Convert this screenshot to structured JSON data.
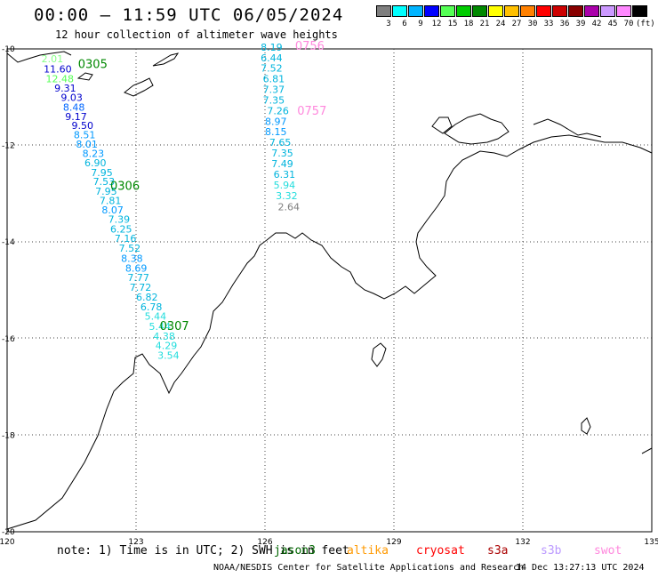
{
  "title": "00:00 – 11:59 UTC 06/05/2024",
  "subtitle": "12 hour collection of altimeter wave heights",
  "colorbar": {
    "colors": [
      "#7f7f7f",
      "#00ffff",
      "#00b4ff",
      "#0000ff",
      "#55ff55",
      "#00cc00",
      "#008800",
      "#ffff00",
      "#ffc000",
      "#ff8000",
      "#ff0000",
      "#cc0000",
      "#880000",
      "#aa00aa",
      "#cc99ff",
      "#ff88ff",
      "#000000"
    ],
    "labels": [
      "3",
      "6",
      "9",
      "12",
      "15",
      "18",
      "21",
      "24",
      "27",
      "30",
      "33",
      "36",
      "39",
      "42",
      "45",
      "70",
      "(ft)"
    ]
  },
  "axes": {
    "lon_labels": [
      "120",
      "123",
      "126",
      "129",
      "132",
      "135"
    ],
    "lat_labels": [
      "-10",
      "-12",
      "-14",
      "-16",
      "-18",
      "-20"
    ],
    "lon_range": [
      120,
      135
    ],
    "lat_range": [
      -20,
      -10
    ]
  },
  "tracks": [
    {
      "points": [
        {
          "lon": 120.8,
          "lat": -10.28,
          "swh": "2.01",
          "color": "#88ff88"
        },
        {
          "lon": 120.85,
          "lat": -10.49,
          "swh": "11.60",
          "color": "#0000cc"
        },
        {
          "lon": 120.9,
          "lat": -10.69,
          "swh": "12.48",
          "color": "#55ff55"
        },
        {
          "lon": 121.1,
          "lat": -10.88,
          "swh": "9.31",
          "color": "#0000cc"
        },
        {
          "lon": 121.25,
          "lat": -11.08,
          "swh": "9.03",
          "color": "#0000cc"
        },
        {
          "lon": 121.3,
          "lat": -11.28,
          "swh": "8.48",
          "color": "#0066ff"
        },
        {
          "lon": 121.35,
          "lat": -11.47,
          "swh": "9.17",
          "color": "#0000cc"
        },
        {
          "lon": 121.5,
          "lat": -11.66,
          "swh": "9.50",
          "color": "#0000cc"
        },
        {
          "lon": 121.55,
          "lat": -11.85,
          "swh": "8.51",
          "color": "#0099ff"
        },
        {
          "lon": 121.6,
          "lat": -12.04,
          "swh": "8.01",
          "color": "#0099ff"
        },
        {
          "lon": 121.75,
          "lat": -12.24,
          "swh": "8.23",
          "color": "#0099ff"
        },
        {
          "lon": 121.8,
          "lat": -12.43,
          "swh": "6.90",
          "color": "#00b4dd"
        },
        {
          "lon": 121.95,
          "lat": -12.63,
          "swh": "7.95",
          "color": "#00b4dd"
        },
        {
          "lon": 122.0,
          "lat": -12.82,
          "swh": "7.53",
          "color": "#00b4dd"
        },
        {
          "lon": 122.05,
          "lat": -13.02,
          "swh": "7.95",
          "color": "#00b4dd"
        },
        {
          "lon": 122.15,
          "lat": -13.21,
          "swh": "7.81",
          "color": "#00b4dd"
        },
        {
          "lon": 122.2,
          "lat": -13.41,
          "swh": "8.07",
          "color": "#0099ff"
        },
        {
          "lon": 122.35,
          "lat": -13.6,
          "swh": "7.39",
          "color": "#00b4dd"
        },
        {
          "lon": 122.4,
          "lat": -13.8,
          "swh": "6.25",
          "color": "#00b4dd"
        },
        {
          "lon": 122.5,
          "lat": -14.0,
          "swh": "7.16",
          "color": "#00b4dd"
        },
        {
          "lon": 122.6,
          "lat": -14.2,
          "swh": "7.52",
          "color": "#00b4dd"
        },
        {
          "lon": 122.65,
          "lat": -14.41,
          "swh": "8.38",
          "color": "#0099ff"
        },
        {
          "lon": 122.75,
          "lat": -14.61,
          "swh": "8.69",
          "color": "#0099ff"
        },
        {
          "lon": 122.8,
          "lat": -14.81,
          "swh": "7.77",
          "color": "#00b4dd"
        },
        {
          "lon": 122.85,
          "lat": -15.01,
          "swh": "7.72",
          "color": "#00b4dd"
        },
        {
          "lon": 123.0,
          "lat": -15.21,
          "swh": "6.82",
          "color": "#00b4dd"
        },
        {
          "lon": 123.1,
          "lat": -15.41,
          "swh": "6.78",
          "color": "#00b4dd"
        },
        {
          "lon": 123.2,
          "lat": -15.61,
          "swh": "5.44",
          "color": "#22dddd"
        },
        {
          "lon": 123.3,
          "lat": -15.82,
          "swh": "5.44",
          "color": "#22dddd"
        },
        {
          "lon": 123.4,
          "lat": -16.02,
          "swh": "4.38",
          "color": "#22dddd"
        },
        {
          "lon": 123.45,
          "lat": -16.22,
          "swh": "4.29",
          "color": "#22dddd"
        },
        {
          "lon": 123.5,
          "lat": -16.42,
          "swh": "3.54",
          "color": "#22dddd"
        }
      ],
      "pass_labels": [
        {
          "lon": 121.65,
          "lat": -10.4,
          "text": "0305",
          "color": "#008800"
        },
        {
          "lon": 122.4,
          "lat": -12.92,
          "text": "0306",
          "color": "#008800"
        },
        {
          "lon": 123.55,
          "lat": -15.82,
          "text": "0307",
          "color": "#008800"
        }
      ]
    },
    {
      "points": [
        {
          "lon": 125.9,
          "lat": -10.04,
          "swh": "8.19",
          "color": "#00b4dd"
        },
        {
          "lon": 125.9,
          "lat": -10.26,
          "swh": "6.44",
          "color": "#00b4dd"
        },
        {
          "lon": 125.9,
          "lat": -10.47,
          "swh": "7.52",
          "color": "#00b4dd"
        },
        {
          "lon": 125.95,
          "lat": -10.69,
          "swh": "6.81",
          "color": "#00b4dd"
        },
        {
          "lon": 125.95,
          "lat": -10.91,
          "swh": "7.37",
          "color": "#00b4dd"
        },
        {
          "lon": 125.95,
          "lat": -11.13,
          "swh": "7.35",
          "color": "#00b4dd"
        },
        {
          "lon": 126.05,
          "lat": -11.35,
          "swh": "7.26",
          "color": "#00b4dd"
        },
        {
          "lon": 126.0,
          "lat": -11.57,
          "swh": "8.97",
          "color": "#0099ff"
        },
        {
          "lon": 126.0,
          "lat": -11.79,
          "swh": "8.15",
          "color": "#0099ff"
        },
        {
          "lon": 126.1,
          "lat": -12.01,
          "swh": "7.65",
          "color": "#00b4dd"
        },
        {
          "lon": 126.15,
          "lat": -12.23,
          "swh": "7.35",
          "color": "#00b4dd"
        },
        {
          "lon": 126.15,
          "lat": -12.45,
          "swh": "7.49",
          "color": "#00b4dd"
        },
        {
          "lon": 126.2,
          "lat": -12.67,
          "swh": "6.31",
          "color": "#00b4dd"
        },
        {
          "lon": 126.2,
          "lat": -12.89,
          "swh": "5.94",
          "color": "#22dddd"
        },
        {
          "lon": 126.25,
          "lat": -13.11,
          "swh": "3.32",
          "color": "#22dddd"
        },
        {
          "lon": 126.3,
          "lat": -13.34,
          "swh": "2.64",
          "color": "#7f7f7f"
        }
      ],
      "pass_labels": [
        {
          "lon": 126.7,
          "lat": -10.02,
          "text": "0756",
          "color": "#ff88dd"
        },
        {
          "lon": 126.75,
          "lat": -11.36,
          "text": "0757",
          "color": "#ff88dd"
        }
      ]
    }
  ],
  "note": "note: 1) Time is in UTC; 2) SWH is in feet",
  "satellites": [
    {
      "name": "jason3",
      "color": "#006600"
    },
    {
      "name": "altika",
      "color": "#ff9900"
    },
    {
      "name": "cryosat",
      "color": "#ff0000"
    },
    {
      "name": "s3a",
      "color": "#aa0000"
    },
    {
      "name": "s3b",
      "color": "#bb99ff"
    },
    {
      "name": "swot",
      "color": "#ff88dd"
    }
  ],
  "credit": "NOAA/NESDIS Center for Satellite Applications and Research",
  "timestamp": "14 Dec 13:27:13 UTC 2024"
}
